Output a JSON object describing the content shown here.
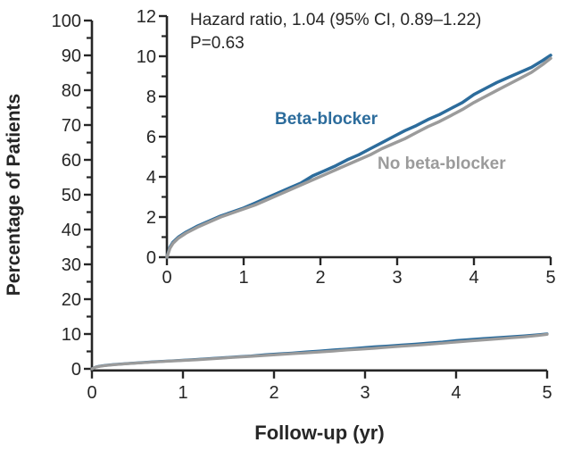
{
  "chart_data": {
    "type": "line",
    "description": "Kaplan-Meier cumulative incidence curves with magnified inset",
    "xlabel": "Follow-up (yr)",
    "ylabel": "Percentage of Patients",
    "annotation_line1": "Hazard ratio, 1.04 (95% CI, 0.89–1.22)",
    "annotation_line2": "P=0.63",
    "main_plot": {
      "xlim": [
        0,
        5
      ],
      "ylim": [
        0,
        100
      ],
      "x_ticks": [
        0,
        1,
        2,
        3,
        4,
        5
      ],
      "y_ticks": [
        0,
        10,
        20,
        30,
        40,
        50,
        60,
        70,
        80,
        90,
        100
      ],
      "y_minor_ticks": [
        5,
        15,
        25,
        35,
        45,
        55,
        65,
        75,
        85,
        95
      ],
      "grid": false
    },
    "inset_plot": {
      "xlim": [
        0,
        5
      ],
      "ylim": [
        0,
        12
      ],
      "x_ticks": [
        0,
        1,
        2,
        3,
        4,
        5
      ],
      "y_ticks": [
        0,
        2,
        4,
        6,
        8,
        10,
        12
      ],
      "y_minor_ticks": [
        1,
        3,
        5,
        7,
        9,
        11
      ],
      "grid": false
    },
    "colors": {
      "beta_blocker": "#2c6c9c",
      "no_beta_blocker": "#9b9b9b",
      "axis": "#262626",
      "text": "#262626",
      "background": "#ffffff"
    },
    "x": [
      0,
      0.04,
      0.08,
      0.15,
      0.25,
      0.4,
      0.55,
      0.7,
      0.85,
      1.0,
      1.15,
      1.3,
      1.45,
      1.6,
      1.75,
      1.9,
      2.05,
      2.2,
      2.35,
      2.5,
      2.65,
      2.8,
      2.95,
      3.1,
      3.25,
      3.4,
      3.55,
      3.7,
      3.85,
      4.0,
      4.15,
      4.3,
      4.45,
      4.6,
      4.75,
      4.9,
      5.0
    ],
    "series": [
      {
        "name": "Beta-blocker",
        "color": "#2c6c9c",
        "y": [
          0,
          0.5,
          0.75,
          1.0,
          1.25,
          1.55,
          1.8,
          2.05,
          2.25,
          2.45,
          2.7,
          2.95,
          3.2,
          3.45,
          3.7,
          4.05,
          4.3,
          4.55,
          4.85,
          5.1,
          5.4,
          5.7,
          6.0,
          6.3,
          6.55,
          6.85,
          7.1,
          7.4,
          7.7,
          8.1,
          8.4,
          8.7,
          8.95,
          9.2,
          9.45,
          9.8,
          10.05
        ]
      },
      {
        "name": "No beta-blocker",
        "color": "#9b9b9b",
        "y": [
          0,
          0.45,
          0.7,
          0.95,
          1.2,
          1.5,
          1.75,
          2.0,
          2.2,
          2.4,
          2.6,
          2.85,
          3.1,
          3.35,
          3.6,
          3.85,
          4.1,
          4.35,
          4.6,
          4.85,
          5.1,
          5.4,
          5.65,
          5.9,
          6.2,
          6.5,
          6.75,
          7.05,
          7.35,
          7.7,
          8.0,
          8.3,
          8.6,
          8.9,
          9.2,
          9.6,
          9.9
        ]
      }
    ]
  }
}
